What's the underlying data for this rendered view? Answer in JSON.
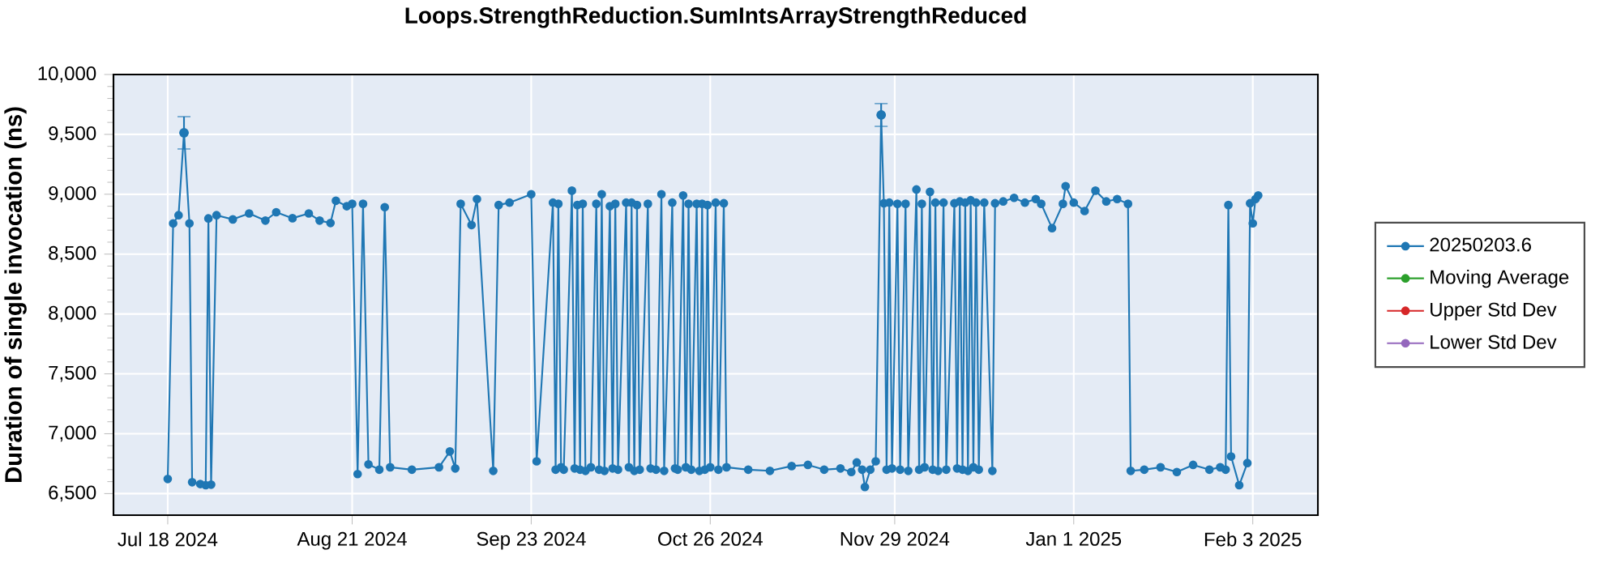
{
  "chart_data": {
    "type": "line",
    "title": "Loops.StrengthReduction.SumIntsArrayStrengthReduced",
    "ylabel": "Duration of single invocation (ns)",
    "xlim": [
      "2024-07-08",
      "2025-02-15"
    ],
    "ylim": [
      6320,
      10000
    ],
    "xticks": [
      {
        "value": "2024-07-18",
        "label": "Jul 18 2024"
      },
      {
        "value": "2024-08-21",
        "label": "Aug 21 2024"
      },
      {
        "value": "2024-09-23",
        "label": "Sep 23 2024"
      },
      {
        "value": "2024-10-26",
        "label": "Oct 26 2024"
      },
      {
        "value": "2024-11-29",
        "label": "Nov 29 2024"
      },
      {
        "value": "2025-01-01",
        "label": "Jan 1 2025"
      },
      {
        "value": "2025-02-03",
        "label": "Feb 3 2025"
      }
    ],
    "yticks": [
      {
        "value": 6500,
        "label": "6,500"
      },
      {
        "value": 7000,
        "label": "7,000"
      },
      {
        "value": 7500,
        "label": "7,500"
      },
      {
        "value": 8000,
        "label": "8,000"
      },
      {
        "value": 8500,
        "label": "8,500"
      },
      {
        "value": 9000,
        "label": "9,000"
      },
      {
        "value": 9500,
        "label": "9,500"
      },
      {
        "value": 10000,
        "label": "10,000"
      }
    ],
    "grid": true,
    "legend": "right",
    "marker": "circle",
    "x": [
      "2024-07-18",
      "2024-07-19",
      "2024-07-20",
      "2024-07-21",
      "2024-07-22",
      "2024-07-22T12:00",
      "2024-07-24",
      "2024-07-25",
      "2024-07-25T12:00",
      "2024-07-26",
      "2024-07-27",
      "2024-07-30",
      "2024-08-02",
      "2024-08-05",
      "2024-08-07",
      "2024-08-10",
      "2024-08-13",
      "2024-08-15",
      "2024-08-17",
      "2024-08-18",
      "2024-08-20",
      "2024-08-21",
      "2024-08-22",
      "2024-08-23",
      "2024-08-24",
      "2024-08-26",
      "2024-08-27",
      "2024-08-28",
      "2024-09-01",
      "2024-09-06",
      "2024-09-08",
      "2024-09-09",
      "2024-09-10",
      "2024-09-12",
      "2024-09-13",
      "2024-09-16",
      "2024-09-17",
      "2024-09-19",
      "2024-09-23",
      "2024-09-24",
      "2024-09-27",
      "2024-09-27T12:00",
      "2024-09-28",
      "2024-09-28T12:00",
      "2024-09-29",
      "2024-09-30T12:00",
      "2024-10-01",
      "2024-10-01T12:00",
      "2024-10-02",
      "2024-10-02T12:00",
      "2024-10-03",
      "2024-10-04",
      "2024-10-05",
      "2024-10-05T12:00",
      "2024-10-06",
      "2024-10-06T12:00",
      "2024-10-07T12:00",
      "2024-10-08",
      "2024-10-08T12:00",
      "2024-10-09",
      "2024-10-10T12:00",
      "2024-10-11",
      "2024-10-11T12:00",
      "2024-10-12",
      "2024-10-12T12:00",
      "2024-10-13",
      "2024-10-14T12:00",
      "2024-10-15",
      "2024-10-16",
      "2024-10-17",
      "2024-10-17T12:00",
      "2024-10-19",
      "2024-10-19T12:00",
      "2024-10-20",
      "2024-10-21",
      "2024-10-21T12:00",
      "2024-10-22",
      "2024-10-22T12:00",
      "2024-10-23T12:00",
      "2024-10-24",
      "2024-10-24T12:00",
      "2024-10-25",
      "2024-10-25T12:00",
      "2024-10-26",
      "2024-10-27",
      "2024-10-27T12:00",
      "2024-10-28T12:00",
      "2024-10-29",
      "2024-11-02",
      "2024-11-06",
      "2024-11-10",
      "2024-11-13",
      "2024-11-16",
      "2024-11-19",
      "2024-11-21",
      "2024-11-22",
      "2024-11-23",
      "2024-11-23T12:00",
      "2024-11-24T12:00",
      "2024-11-25T12:00",
      "2024-11-26T12:00",
      "2024-11-27",
      "2024-11-27T12:00",
      "2024-11-28",
      "2024-11-28T12:00",
      "2024-11-29T12:00",
      "2024-11-30",
      "2024-12-01",
      "2024-12-01T12:00",
      "2024-12-03",
      "2024-12-03T12:00",
      "2024-12-04",
      "2024-12-04T12:00",
      "2024-12-05T12:00",
      "2024-12-06",
      "2024-12-06T12:00",
      "2024-12-07",
      "2024-12-08",
      "2024-12-08T12:00",
      "2024-12-10",
      "2024-12-10T12:00",
      "2024-12-11",
      "2024-12-11T12:00",
      "2024-12-12",
      "2024-12-12T12:00",
      "2024-12-13",
      "2024-12-13T12:00",
      "2024-12-14",
      "2024-12-14T12:00",
      "2024-12-15T12:00",
      "2024-12-17",
      "2024-12-17T12:00",
      "2024-12-19",
      "2024-12-21",
      "2024-12-23",
      "2024-12-25",
      "2024-12-26",
      "2024-12-28",
      "2024-12-30",
      "2024-12-30T12:00",
      "2025-01-01",
      "2025-01-03",
      "2025-01-05",
      "2025-01-07",
      "2025-01-09",
      "2025-01-11",
      "2025-01-11T12:00",
      "2025-01-14",
      "2025-01-17",
      "2025-01-20",
      "2025-01-23",
      "2025-01-26",
      "2025-01-28",
      "2025-01-29",
      "2025-01-29T12:00",
      "2025-01-30",
      "2025-01-31T12:00",
      "2025-02-02",
      "2025-02-02T12:00",
      "2025-02-03",
      "2025-02-03T12:00",
      "2025-02-04"
    ],
    "series": [
      {
        "name": "20250203.6",
        "color": "#1f77b4",
        "values": [
          6622,
          8757,
          8825,
          9513,
          8757,
          6595,
          6580,
          6570,
          8798,
          6575,
          8825,
          8790,
          8840,
          8780,
          8850,
          8800,
          8840,
          8780,
          8760,
          8946,
          8900,
          8920,
          6663,
          8920,
          6744,
          6700,
          8892,
          6720,
          6700,
          6720,
          6852,
          6710,
          8920,
          8743,
          8960,
          6690,
          8910,
          8930,
          9000,
          6770,
          8930,
          6700,
          8920,
          6720,
          6700,
          9030,
          6710,
          8910,
          6700,
          8920,
          6690,
          6720,
          8920,
          6700,
          9000,
          6690,
          8900,
          6710,
          8920,
          6700,
          8930,
          6720,
          8930,
          6690,
          8910,
          6700,
          8920,
          6710,
          6700,
          9000,
          6690,
          8930,
          6710,
          6700,
          8990,
          6720,
          8920,
          6700,
          8920,
          6690,
          8920,
          6700,
          8910,
          6720,
          8930,
          6700,
          8925,
          6720,
          6700,
          6690,
          6730,
          6740,
          6700,
          6710,
          6680,
          6760,
          6700,
          6555,
          6700,
          6770,
          9662,
          8925,
          6700,
          8930,
          6710,
          8920,
          6700,
          8920,
          6690,
          9040,
          6700,
          8920,
          6720,
          9020,
          6700,
          8930,
          6690,
          8930,
          6700,
          8925,
          6710,
          8940,
          6700,
          8930,
          6690,
          8950,
          6720,
          8930,
          6700,
          8930,
          6690,
          8925,
          8940,
          8970,
          8930,
          8960,
          8920,
          8717,
          8920,
          9068,
          8930,
          8860,
          9030,
          8940,
          8960,
          8920,
          6690,
          6700,
          6720,
          6680,
          6740,
          6700,
          6720,
          6700,
          8910,
          6810,
          6570,
          6755,
          8925,
          8757,
          8960,
          8990
        ],
        "errors": [
          null,
          null,
          null,
          135,
          null,
          null,
          null,
          null,
          null,
          null,
          null,
          null,
          null,
          null,
          null,
          null,
          null,
          null,
          null,
          null,
          null,
          null,
          null,
          null,
          null,
          null,
          null,
          null,
          null,
          null,
          null,
          null,
          null,
          null,
          null,
          null,
          null,
          null,
          null,
          null,
          null,
          null,
          null,
          null,
          null,
          null,
          null,
          null,
          null,
          null,
          null,
          null,
          null,
          null,
          null,
          null,
          null,
          null,
          null,
          null,
          null,
          null,
          null,
          null,
          null,
          null,
          null,
          null,
          null,
          null,
          null,
          null,
          null,
          null,
          null,
          null,
          null,
          null,
          null,
          null,
          null,
          null,
          null,
          null,
          null,
          null,
          null,
          null,
          null,
          null,
          null,
          null,
          null,
          null,
          null,
          null,
          null,
          null,
          null,
          null,
          95,
          null,
          null,
          null,
          null,
          null,
          null,
          null,
          null,
          null,
          null,
          null,
          null,
          null,
          null,
          null,
          null,
          null,
          null,
          null,
          null,
          null,
          null,
          null,
          null,
          null,
          null,
          null,
          null,
          null,
          null,
          null,
          null,
          null,
          null,
          null,
          null,
          null,
          null,
          null,
          null,
          null,
          null,
          null,
          null,
          null,
          null,
          null,
          null,
          null,
          null,
          null,
          null,
          null,
          null,
          null,
          null,
          null,
          null,
          null,
          null,
          null
        ]
      },
      {
        "name": "Moving Average",
        "color": "#2ca02c",
        "values": [
          null,
          null,
          null,
          null,
          null,
          null,
          null,
          null,
          null,
          null,
          null,
          null,
          null,
          null,
          null,
          null,
          null,
          null,
          null,
          null,
          null,
          null,
          null,
          null,
          null,
          null,
          null,
          null,
          null,
          null,
          null,
          null,
          null,
          null,
          null,
          null,
          null,
          null,
          null,
          null,
          null,
          null,
          null,
          null,
          null,
          null,
          null,
          null,
          null,
          null,
          null,
          null,
          null,
          null,
          null,
          null,
          null,
          null,
          null,
          null,
          null,
          null,
          null,
          null,
          null,
          null,
          null,
          null,
          null,
          null,
          null,
          null,
          null,
          null,
          null,
          null,
          null,
          null,
          null,
          null,
          null,
          null,
          null,
          null,
          null,
          null,
          null,
          null,
          null,
          null,
          null,
          null,
          null,
          null,
          null,
          null,
          null,
          null,
          null,
          null,
          null,
          null,
          null,
          null,
          null,
          null,
          null,
          null,
          null,
          null,
          null,
          null,
          null,
          null,
          null,
          null,
          null,
          null,
          null,
          null,
          null,
          null,
          null,
          null,
          null,
          null,
          null,
          null,
          null,
          null,
          null,
          null,
          null,
          null,
          null,
          null,
          null,
          null,
          null,
          null,
          null,
          null,
          null,
          null,
          null,
          null,
          null,
          null,
          null,
          null,
          null,
          null,
          null,
          null,
          null,
          null,
          null,
          null,
          null,
          null,
          null,
          null
        ]
      },
      {
        "name": "Upper Std Dev",
        "color": "#d62728",
        "values": [
          null,
          null,
          null,
          null,
          null,
          null,
          null,
          null,
          null,
          null,
          null,
          null,
          null,
          null,
          null,
          null,
          null,
          null,
          null,
          null,
          null,
          null,
          null,
          null,
          null,
          null,
          null,
          null,
          null,
          null,
          null,
          null,
          null,
          null,
          null,
          null,
          null,
          null,
          null,
          null,
          null,
          null,
          null,
          null,
          null,
          null,
          null,
          null,
          null,
          null,
          null,
          null,
          null,
          null,
          null,
          null,
          null,
          null,
          null,
          null,
          null,
          null,
          null,
          null,
          null,
          null,
          null,
          null,
          null,
          null,
          null,
          null,
          null,
          null,
          null,
          null,
          null,
          null,
          null,
          null,
          null,
          null,
          null,
          null,
          null,
          null,
          null,
          null,
          null,
          null,
          null,
          null,
          null,
          null,
          null,
          null,
          null,
          null,
          null,
          null,
          null,
          null,
          null,
          null,
          null,
          null,
          null,
          null,
          null,
          null,
          null,
          null,
          null,
          null,
          null,
          null,
          null,
          null,
          null,
          null,
          null,
          null,
          null,
          null,
          null,
          null,
          null,
          null,
          null,
          null,
          null,
          null,
          null,
          null,
          null,
          null,
          null,
          null,
          null,
          null,
          null,
          null,
          null,
          null,
          null,
          null,
          null,
          null,
          null,
          null,
          null,
          null,
          null,
          null,
          null,
          null,
          null,
          null,
          null,
          null,
          null,
          null
        ]
      },
      {
        "name": "Lower Std Dev",
        "color": "#9467bd",
        "values": [
          null,
          null,
          null,
          null,
          null,
          null,
          null,
          null,
          null,
          null,
          null,
          null,
          null,
          null,
          null,
          null,
          null,
          null,
          null,
          null,
          null,
          null,
          null,
          null,
          null,
          null,
          null,
          null,
          null,
          null,
          null,
          null,
          null,
          null,
          null,
          null,
          null,
          null,
          null,
          null,
          null,
          null,
          null,
          null,
          null,
          null,
          null,
          null,
          null,
          null,
          null,
          null,
          null,
          null,
          null,
          null,
          null,
          null,
          null,
          null,
          null,
          null,
          null,
          null,
          null,
          null,
          null,
          null,
          null,
          null,
          null,
          null,
          null,
          null,
          null,
          null,
          null,
          null,
          null,
          null,
          null,
          null,
          null,
          null,
          null,
          null,
          null,
          null,
          null,
          null,
          null,
          null,
          null,
          null,
          null,
          null,
          null,
          null,
          null,
          null,
          null,
          null,
          null,
          null,
          null,
          null,
          null,
          null,
          null,
          null,
          null,
          null,
          null,
          null,
          null,
          null,
          null,
          null,
          null,
          null,
          null,
          null,
          null,
          null,
          null,
          null,
          null,
          null,
          null,
          null,
          null,
          null,
          null,
          null,
          null,
          null,
          null,
          null,
          null,
          null,
          null,
          null,
          null,
          null,
          null,
          null,
          null,
          null,
          null,
          null,
          null,
          null,
          null,
          null,
          null,
          null,
          null,
          null,
          null,
          null,
          null,
          null
        ]
      }
    ]
  }
}
